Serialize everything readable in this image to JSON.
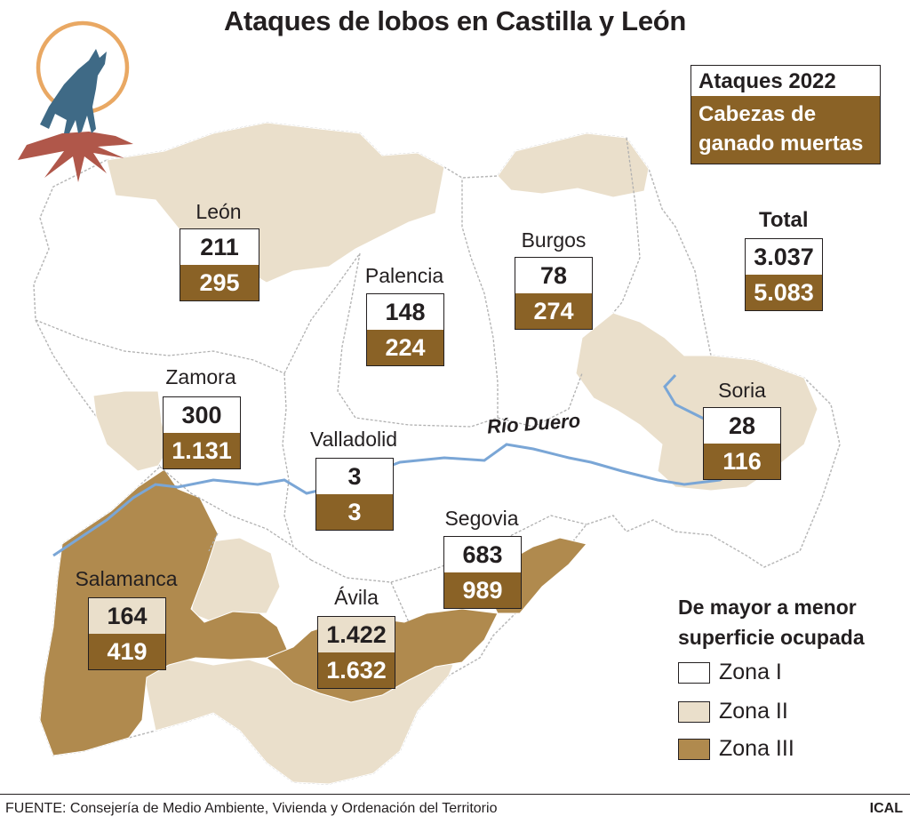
{
  "title": "Ataques de lobos en Castilla y León",
  "legend": {
    "attacks_label": "Ataques 2022",
    "heads_label": "Cabezas de ganado muertas"
  },
  "colors": {
    "zone1": "#ffffff",
    "zone2": "#eadfcb",
    "zone3": "#b08a4e",
    "data_box_dark": "#8a6226",
    "river": "#7aa6d6",
    "sun": "#e9a863",
    "wolf": "#3f6a86",
    "rock": "#b0574a"
  },
  "provinces": [
    {
      "name": "León",
      "attacks": "211",
      "heads": "295",
      "zone_style": "zone1"
    },
    {
      "name": "Palencia",
      "attacks": "148",
      "heads": "224",
      "zone_style": "zone1"
    },
    {
      "name": "Burgos",
      "attacks": "78",
      "heads": "274",
      "zone_style": "zone1"
    },
    {
      "name": "Zamora",
      "attacks": "300",
      "heads": "1.131",
      "zone_style": "zone1"
    },
    {
      "name": "Valladolid",
      "attacks": "3",
      "heads": "3",
      "zone_style": "zone1"
    },
    {
      "name": "Soria",
      "attacks": "28",
      "heads": "116",
      "zone_style": "zone1"
    },
    {
      "name": "Segovia",
      "attacks": "683",
      "heads": "989",
      "zone_style": "zone1"
    },
    {
      "name": "Salamanca",
      "attacks": "164",
      "heads": "419",
      "zone_style": "zone2"
    },
    {
      "name": "Ávila",
      "attacks": "1.422",
      "heads": "1.632",
      "zone_style": "zone2"
    }
  ],
  "total": {
    "label": "Total",
    "attacks": "3.037",
    "heads": "5.083"
  },
  "river_label": "Río Duero",
  "zones_legend": {
    "title": "De mayor a menor superficie ocupada",
    "items": [
      {
        "label": "Zona I",
        "color": "#ffffff"
      },
      {
        "label": "Zona II",
        "color": "#eadfcb"
      },
      {
        "label": "Zona III",
        "color": "#b08a4e"
      }
    ]
  },
  "source": "FUENTE: Consejería de Medio Ambiente, Vivienda y Ordenación del Territorio",
  "agency": "ICAL"
}
